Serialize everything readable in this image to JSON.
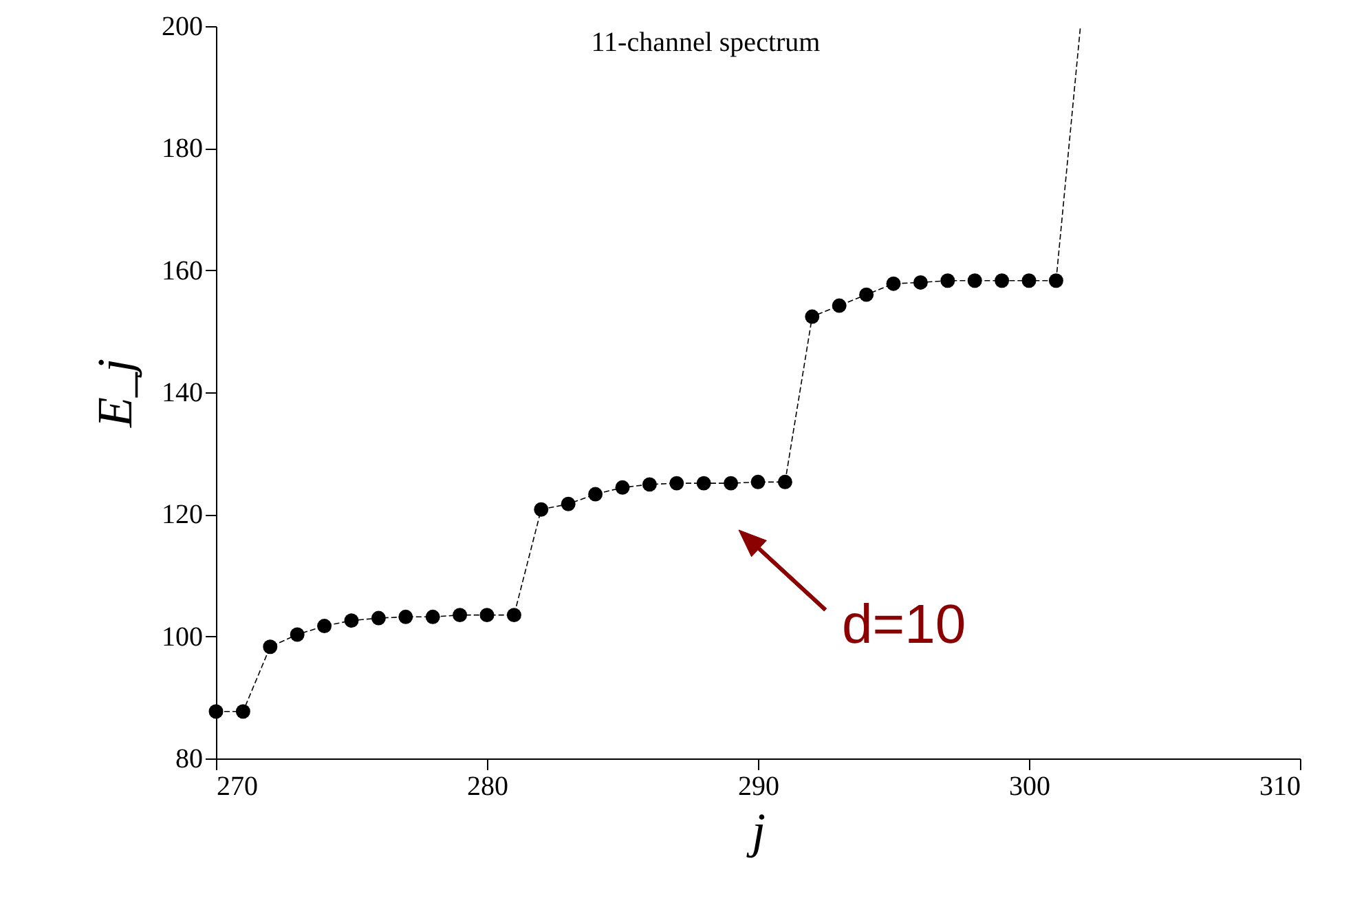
{
  "chart_data": {
    "type": "line",
    "title": "11-channel spectrum",
    "xlabel": "j",
    "ylabel": "E_j",
    "x": [
      270,
      271,
      272,
      273,
      274,
      275,
      276,
      277,
      278,
      279,
      280,
      281,
      282,
      283,
      284,
      285,
      286,
      287,
      288,
      289,
      290,
      291,
      292,
      293,
      294,
      295,
      296,
      297,
      298,
      299,
      300,
      301
    ],
    "series": [
      {
        "color": "#000000",
        "marker": "circle",
        "line_style": "dashed",
        "values": [
          87.7,
          87.7,
          98.3,
          100.3,
          101.7,
          102.6,
          103.0,
          103.2,
          103.2,
          103.5,
          103.5,
          103.5,
          120.8,
          121.7,
          123.3,
          124.4,
          124.9,
          125.1,
          125.1,
          125.1,
          125.3,
          125.3,
          152.4,
          154.2,
          156.0,
          157.8,
          158.0,
          158.3,
          158.3,
          158.3,
          158.3,
          158.3
        ]
      },
      {
        "color": "#000000",
        "marker": "none",
        "line_style": "dashed",
        "x": [
          301,
          301.9
        ],
        "values": [
          158.3,
          200
        ]
      }
    ],
    "xlim": [
      270,
      310
    ],
    "xticks": [
      270,
      280,
      290,
      300,
      310
    ],
    "ylim": [
      80,
      200
    ],
    "yticks": [
      80,
      100,
      120,
      140,
      160,
      180,
      200
    ],
    "grid": false,
    "annotations": [
      "d=10"
    ]
  }
}
